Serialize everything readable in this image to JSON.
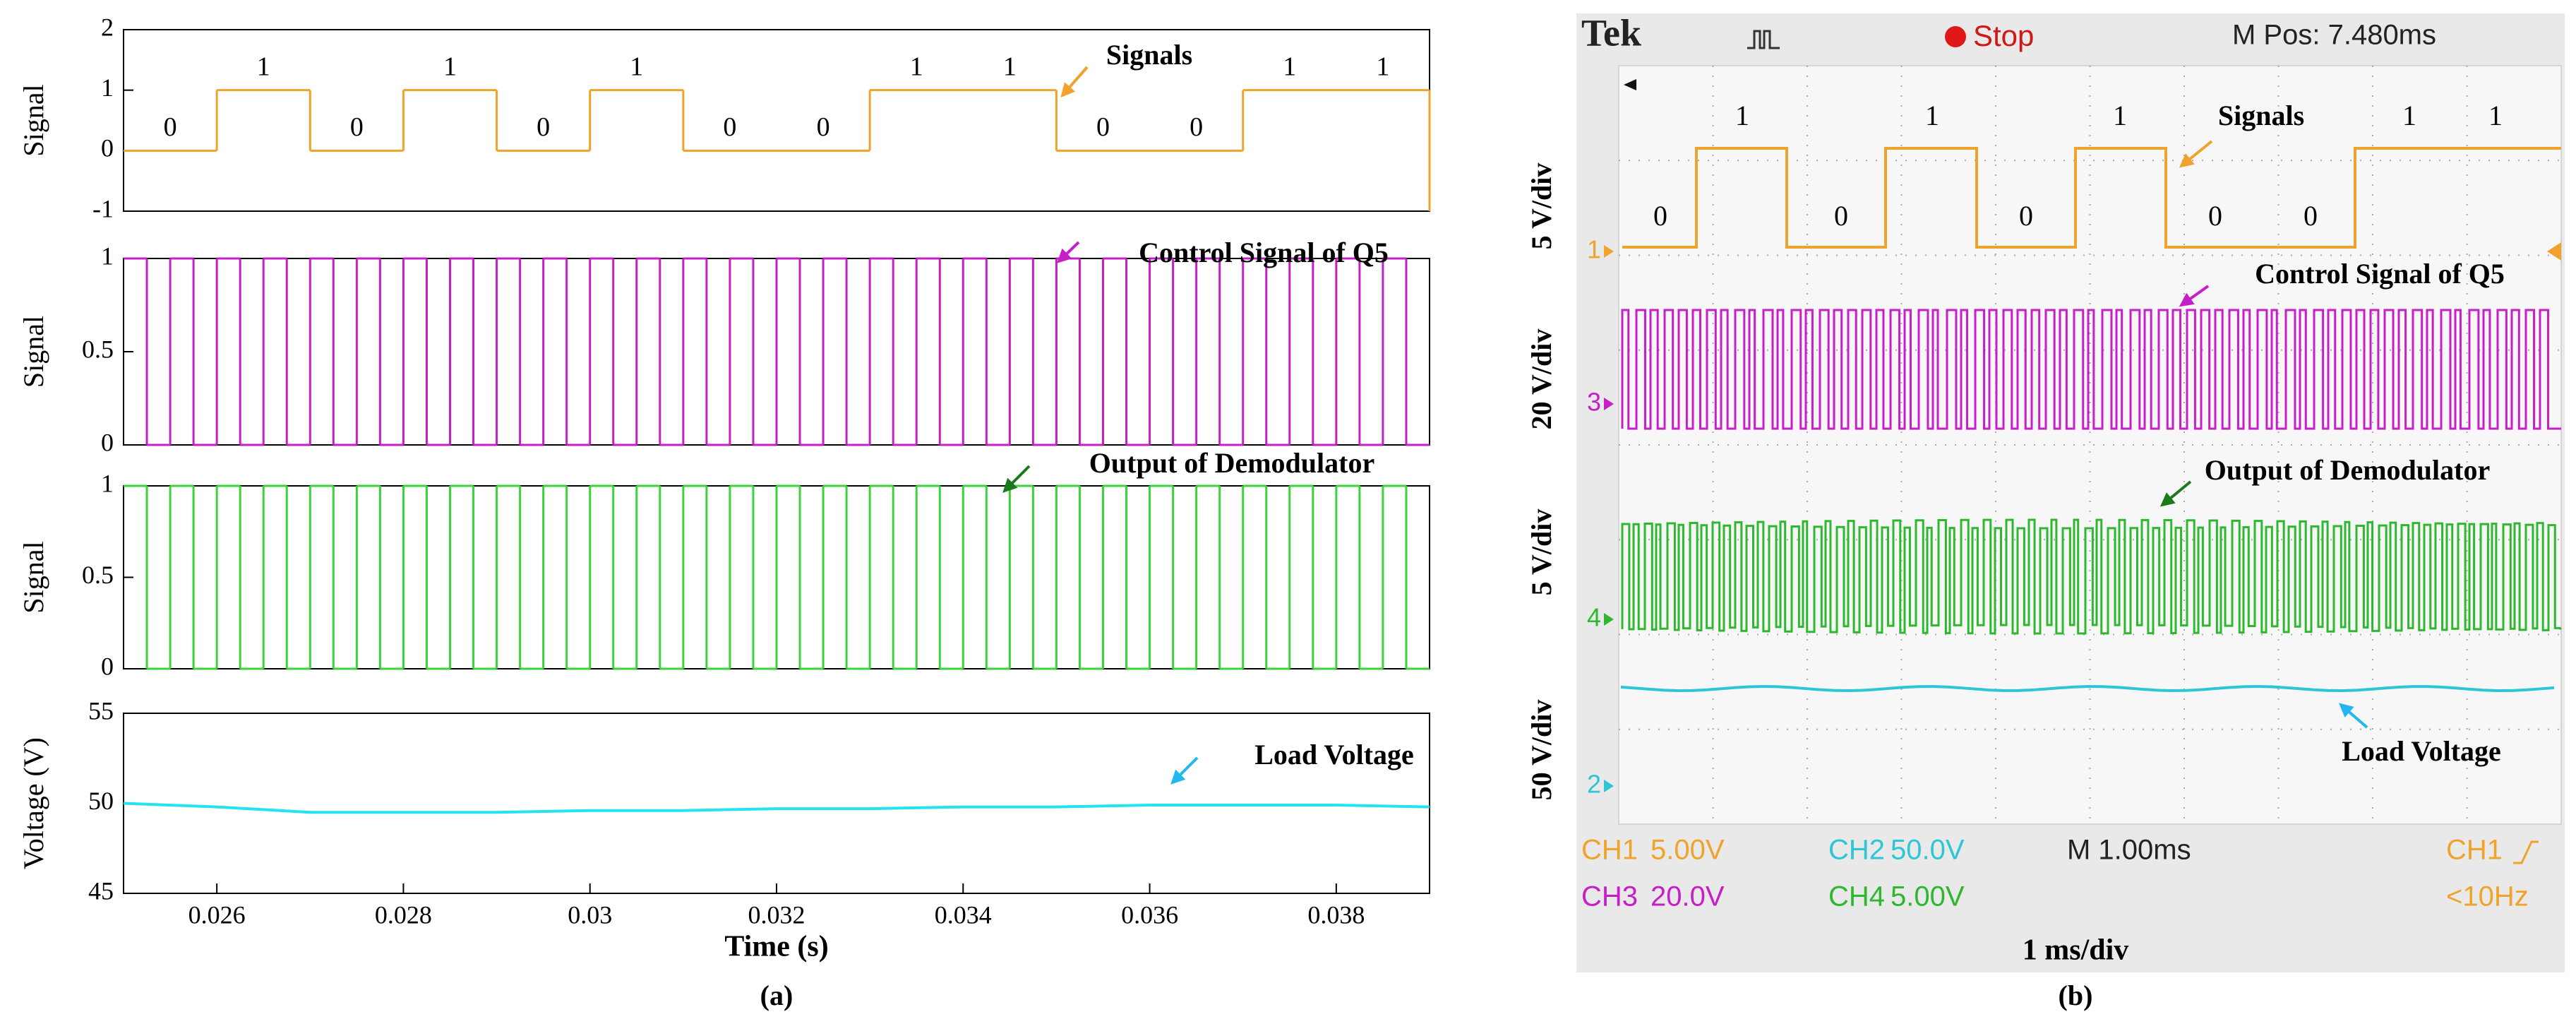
{
  "chart_data": [
    {
      "type": "step",
      "ylabel": "Signal",
      "annotation": "Signals",
      "color": "#f0a32c",
      "xlim": [
        0.025,
        0.039
      ],
      "ylim": [
        -1,
        2
      ],
      "yticks": [
        -1,
        0,
        1,
        2
      ],
      "x": [
        0.025,
        0.026,
        0.027,
        0.028,
        0.029,
        0.03,
        0.031,
        0.033,
        0.035,
        0.037,
        0.039
      ],
      "values": [
        0,
        1,
        0,
        1,
        0,
        1,
        0,
        1,
        0,
        1,
        -1
      ],
      "bits": [
        "0",
        "1",
        "0",
        "1",
        "0",
        "1",
        "0",
        "0",
        "1",
        "1",
        "0",
        "0",
        "1",
        "1"
      ]
    },
    {
      "type": "step",
      "ylabel": "Signal",
      "annotation": "Control Signal of Q5",
      "color": "#c71fc7",
      "xlim": [
        0.025,
        0.039
      ],
      "ylim": [
        0,
        1
      ],
      "yticks": [
        0,
        0.5,
        1
      ],
      "x": [
        0.025,
        0.02525,
        0.0255,
        0.02575,
        0.026,
        0.02625,
        0.0265,
        0.02675,
        0.027,
        0.02725,
        0.0275,
        0.02775,
        0.028,
        0.02825,
        0.0285,
        0.02875,
        0.029,
        0.02925,
        0.0295,
        0.02975,
        0.03,
        0.03025,
        0.0305,
        0.03075,
        0.031,
        0.03125,
        0.0315,
        0.03175,
        0.032,
        0.03225,
        0.0325,
        0.03275,
        0.033,
        0.03325,
        0.0335,
        0.03375,
        0.034,
        0.03425,
        0.0345,
        0.03475,
        0.035,
        0.03525,
        0.0355,
        0.03575,
        0.036,
        0.03625,
        0.0365,
        0.03675,
        0.037,
        0.03725,
        0.0375,
        0.03775,
        0.038,
        0.03825,
        0.0385,
        0.03875,
        0.039
      ],
      "values": [
        1,
        0,
        1,
        0,
        1,
        0,
        1,
        0,
        1,
        0,
        1,
        0,
        1,
        0,
        1,
        0,
        1,
        0,
        1,
        0,
        1,
        0,
        1,
        0,
        1,
        0,
        1,
        0,
        1,
        0,
        1,
        0,
        1,
        0,
        1,
        0,
        1,
        0,
        1,
        0,
        1,
        0,
        1,
        0,
        1,
        0,
        1,
        0,
        1,
        0,
        1,
        0,
        1,
        0,
        1,
        0,
        0
      ]
    },
    {
      "type": "step",
      "ylabel": "Signal",
      "annotation": "Output of Demodulator",
      "color": "#3ad43a",
      "xlim": [
        0.025,
        0.039
      ],
      "ylim": [
        0,
        1
      ],
      "yticks": [
        0,
        0.5,
        1
      ],
      "x": [
        0.025,
        0.02525,
        0.0255,
        0.02575,
        0.026,
        0.02625,
        0.0265,
        0.02675,
        0.027,
        0.02725,
        0.0275,
        0.02775,
        0.028,
        0.02825,
        0.0285,
        0.02875,
        0.029,
        0.02925,
        0.0295,
        0.02975,
        0.03,
        0.03025,
        0.0305,
        0.03075,
        0.031,
        0.03125,
        0.0315,
        0.03175,
        0.032,
        0.03225,
        0.0325,
        0.03275,
        0.033,
        0.03325,
        0.0335,
        0.03375,
        0.034,
        0.03425,
        0.0345,
        0.03475,
        0.035,
        0.03525,
        0.0355,
        0.03575,
        0.036,
        0.03625,
        0.0365,
        0.03675,
        0.037,
        0.03725,
        0.0375,
        0.03775,
        0.038,
        0.03825,
        0.0385,
        0.03875,
        0.039
      ],
      "values": [
        1,
        0,
        1,
        0,
        1,
        0,
        1,
        0,
        1,
        0,
        1,
        0,
        1,
        0,
        1,
        0,
        1,
        0,
        1,
        0,
        1,
        0,
        1,
        0,
        1,
        0,
        1,
        0,
        1,
        0,
        1,
        0,
        1,
        0,
        1,
        0,
        1,
        0,
        1,
        0,
        1,
        0,
        1,
        0,
        1,
        0,
        1,
        0,
        1,
        0,
        1,
        0,
        1,
        0,
        1,
        0,
        0
      ]
    },
    {
      "type": "line",
      "ylabel": "Voltage (V)",
      "xlabel": "Time (s)",
      "annotation": "Load Voltage",
      "color": "#22e3ef",
      "xlim": [
        0.025,
        0.039
      ],
      "ylim": [
        45,
        55
      ],
      "yticks": [
        45,
        50,
        55
      ],
      "xticks": [
        0.026,
        0.028,
        0.03,
        0.032,
        0.034,
        0.036,
        0.038
      ],
      "x": [
        0.025,
        0.026,
        0.027,
        0.028,
        0.029,
        0.03,
        0.031,
        0.032,
        0.033,
        0.034,
        0.035,
        0.036,
        0.037,
        0.038,
        0.039
      ],
      "values": [
        50,
        49.8,
        49.5,
        49.5,
        49.5,
        49.6,
        49.6,
        49.7,
        49.7,
        49.8,
        49.8,
        49.9,
        49.9,
        49.9,
        49.8
      ]
    }
  ],
  "scope": {
    "brand": "Tek",
    "state": "Stop",
    "position": "M Pos: 7.480ms",
    "scales": [
      "5 V/div",
      "20 V/div",
      "5 V/div",
      "50 V/div"
    ],
    "channel_markers": [
      "1",
      "3",
      "4",
      "2"
    ],
    "bits": [
      "0",
      "1",
      "0",
      "1",
      "0",
      "1",
      "0",
      "0",
      "1",
      "1"
    ],
    "annotations": [
      "Signals",
      "Control Signal of Q5",
      "Output of Demodulator",
      "Load Voltage"
    ],
    "readouts": [
      [
        "CH1",
        "5.00V",
        "CH2",
        "50.0V",
        "M 1.00ms",
        "CH1"
      ],
      [
        "CH3",
        "20.0V",
        "CH4",
        "5.00V",
        "<10Hz"
      ]
    ],
    "xlabel": "1 ms/div"
  },
  "captions": [
    "(a)",
    "(b)"
  ]
}
